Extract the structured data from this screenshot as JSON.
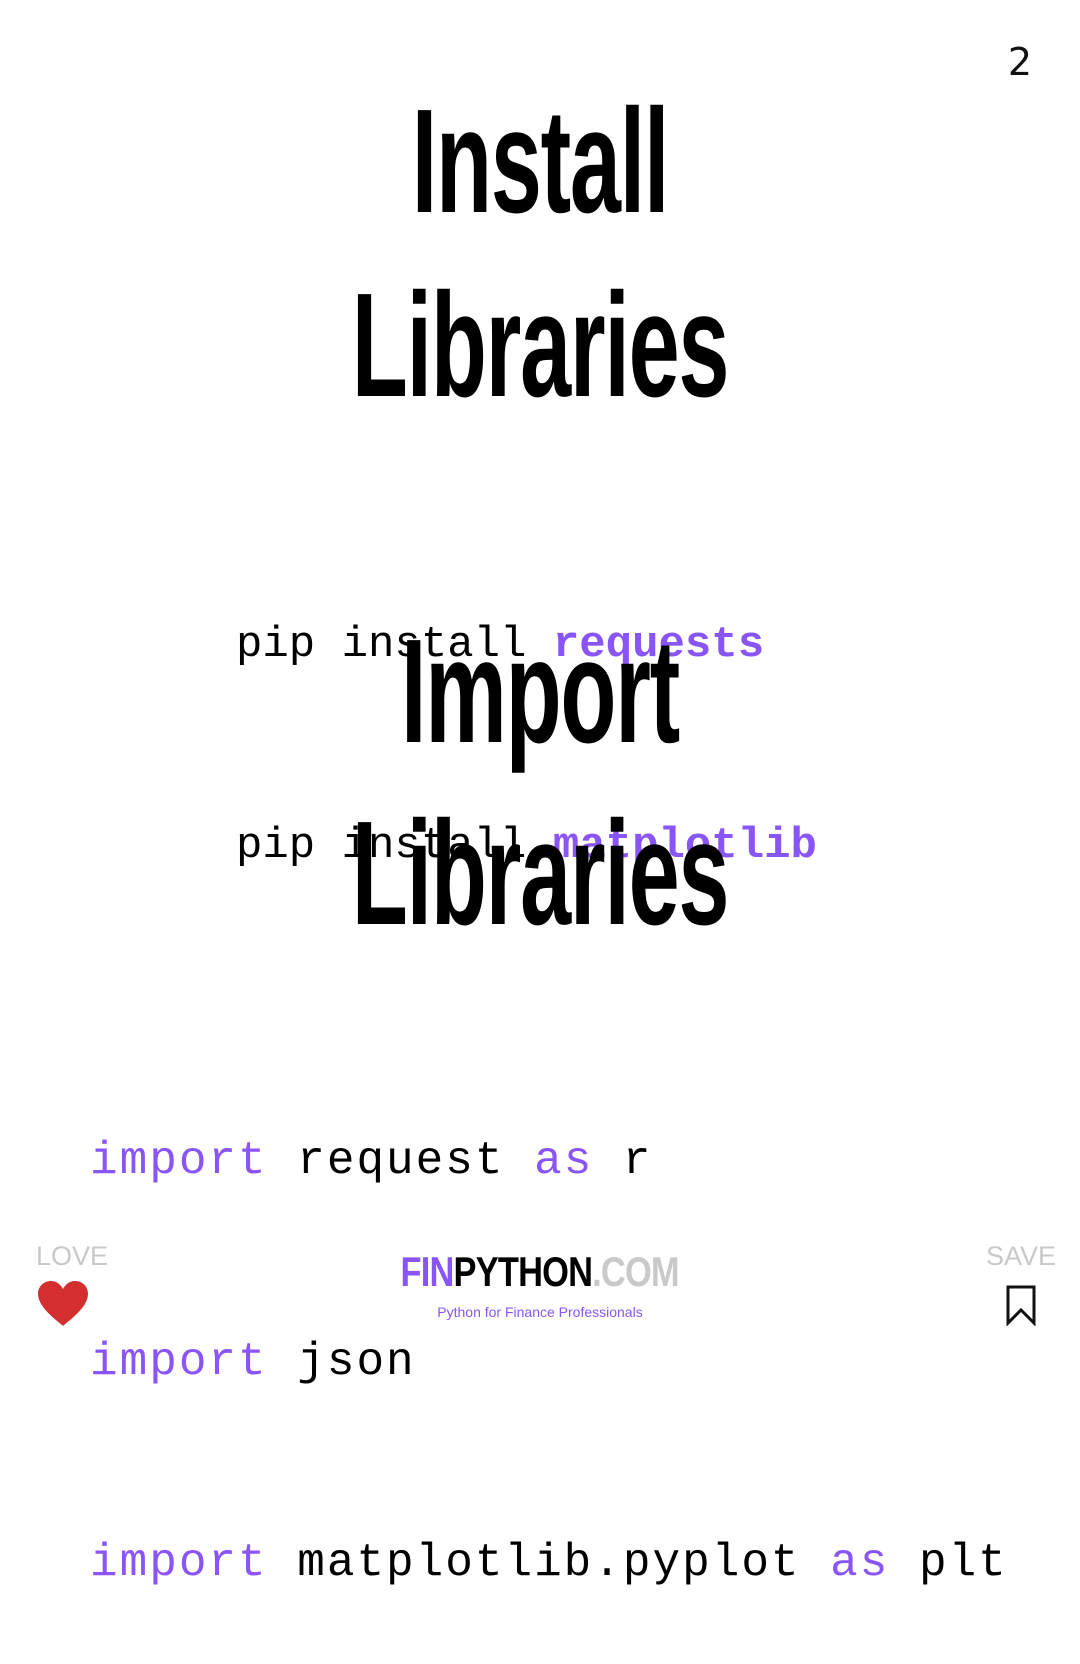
{
  "page_number": "2",
  "headings": {
    "install": "Install",
    "libraries_1": "Libraries",
    "import": "Import",
    "libraries_2": "Libraries"
  },
  "pip_commands": [
    {
      "prefix": "pip install ",
      "package": "requests"
    },
    {
      "prefix": "pip install ",
      "package": "matplotlib"
    }
  ],
  "import_statements": [
    {
      "kw": "import",
      "module": " request ",
      "as_kw": "as",
      "alias": " r"
    },
    {
      "kw": "import",
      "module": " json",
      "as_kw": "",
      "alias": ""
    },
    {
      "kw": "import",
      "module": " matplotlib.pyplot ",
      "as_kw": "as",
      "alias": " plt"
    }
  ],
  "footer": {
    "love_label": "LOVE",
    "save_label": "SAVE",
    "brand_fin": "FIN",
    "brand_python": "PYTHON",
    "brand_com": ".COM",
    "tagline": "Python for Finance Professionals",
    "heart_icon": "heart-icon",
    "bookmark_icon": "bookmark-icon"
  },
  "colors": {
    "accent": "#8a55f7",
    "heart": "#d32f2f",
    "muted": "#c9c9c9"
  }
}
